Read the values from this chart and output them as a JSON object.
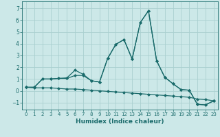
{
  "xlabel": "Humidex (Indice chaleur)",
  "background_color": "#cce8e8",
  "grid_color": "#aad0d0",
  "line_color": "#1a6b6b",
  "xlim": [
    -0.5,
    23.5
  ],
  "ylim": [
    -1.6,
    7.6
  ],
  "yticks": [
    -1,
    0,
    1,
    2,
    3,
    4,
    5,
    6,
    7
  ],
  "xticks": [
    0,
    1,
    2,
    3,
    4,
    5,
    6,
    7,
    8,
    9,
    10,
    11,
    12,
    13,
    14,
    15,
    16,
    17,
    18,
    19,
    20,
    21,
    22,
    23
  ],
  "lines": [
    {
      "x": [
        0,
        1,
        2,
        3,
        4,
        5,
        6,
        7,
        8,
        9,
        10,
        11,
        12,
        13,
        14,
        15,
        16,
        17,
        18,
        19,
        20,
        21,
        22,
        23
      ],
      "y": [
        0.3,
        0.3,
        1.0,
        1.0,
        1.05,
        1.1,
        1.75,
        1.4,
        0.85,
        0.75,
        2.75,
        3.95,
        4.35,
        2.7,
        5.8,
        6.8,
        2.55,
        1.15,
        0.6,
        0.1,
        0.05,
        -1.15,
        -1.2,
        -0.85
      ]
    },
    {
      "x": [
        0,
        1,
        2,
        3,
        4,
        5,
        6,
        7,
        8,
        9,
        10,
        11,
        12,
        13,
        14,
        15,
        16,
        17,
        18,
        19,
        20,
        21,
        22,
        23
      ],
      "y": [
        0.3,
        0.3,
        1.0,
        1.0,
        1.05,
        1.05,
        1.3,
        1.3,
        0.85,
        0.75,
        2.75,
        3.95,
        4.35,
        2.7,
        5.8,
        6.8,
        2.55,
        1.15,
        0.6,
        0.1,
        0.05,
        -1.15,
        -1.2,
        -0.85
      ]
    },
    {
      "x": [
        0,
        1,
        2,
        3,
        4,
        5,
        6,
        7,
        8,
        9,
        10,
        11,
        12,
        13,
        14,
        15,
        16,
        17,
        18,
        19,
        20,
        21,
        22,
        23
      ],
      "y": [
        0.3,
        0.25,
        0.25,
        0.25,
        0.2,
        0.15,
        0.15,
        0.1,
        0.05,
        0.0,
        -0.05,
        -0.1,
        -0.15,
        -0.2,
        -0.25,
        -0.3,
        -0.35,
        -0.4,
        -0.45,
        -0.5,
        -0.55,
        -0.7,
        -0.75,
        -0.85
      ]
    }
  ]
}
